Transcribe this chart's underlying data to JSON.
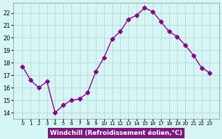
{
  "x": [
    0,
    1,
    2,
    3,
    4,
    5,
    6,
    7,
    8,
    9,
    10,
    11,
    12,
    13,
    14,
    15,
    16,
    17,
    18,
    19,
    20,
    21,
    22,
    23
  ],
  "y": [
    17.7,
    16.6,
    16.0,
    16.5,
    14.0,
    14.6,
    15.0,
    15.1,
    15.6,
    17.3,
    18.4,
    19.9,
    20.5,
    21.5,
    21.8,
    22.4,
    22.1,
    21.3,
    20.5,
    20.1,
    19.4,
    18.6,
    17.6,
    17.2
  ],
  "line_color": "#8B008B",
  "marker": "D",
  "marker_size": 3,
  "background_color": "#d6f5f5",
  "grid_color": "#b0d0d0",
  "xlabel": "Windchill (Refroidissement éolien,°C)",
  "xlabel_bg": "#7B1A7B",
  "xlabel_color": "#ffffff",
  "ylim": [
    13.5,
    22.8
  ],
  "yticks": [
    14,
    15,
    16,
    17,
    18,
    19,
    20,
    21,
    22
  ],
  "xticks": [
    0,
    1,
    2,
    3,
    4,
    5,
    6,
    7,
    8,
    9,
    10,
    11,
    12,
    13,
    14,
    15,
    16,
    17,
    18,
    19,
    20,
    21,
    22,
    23
  ]
}
